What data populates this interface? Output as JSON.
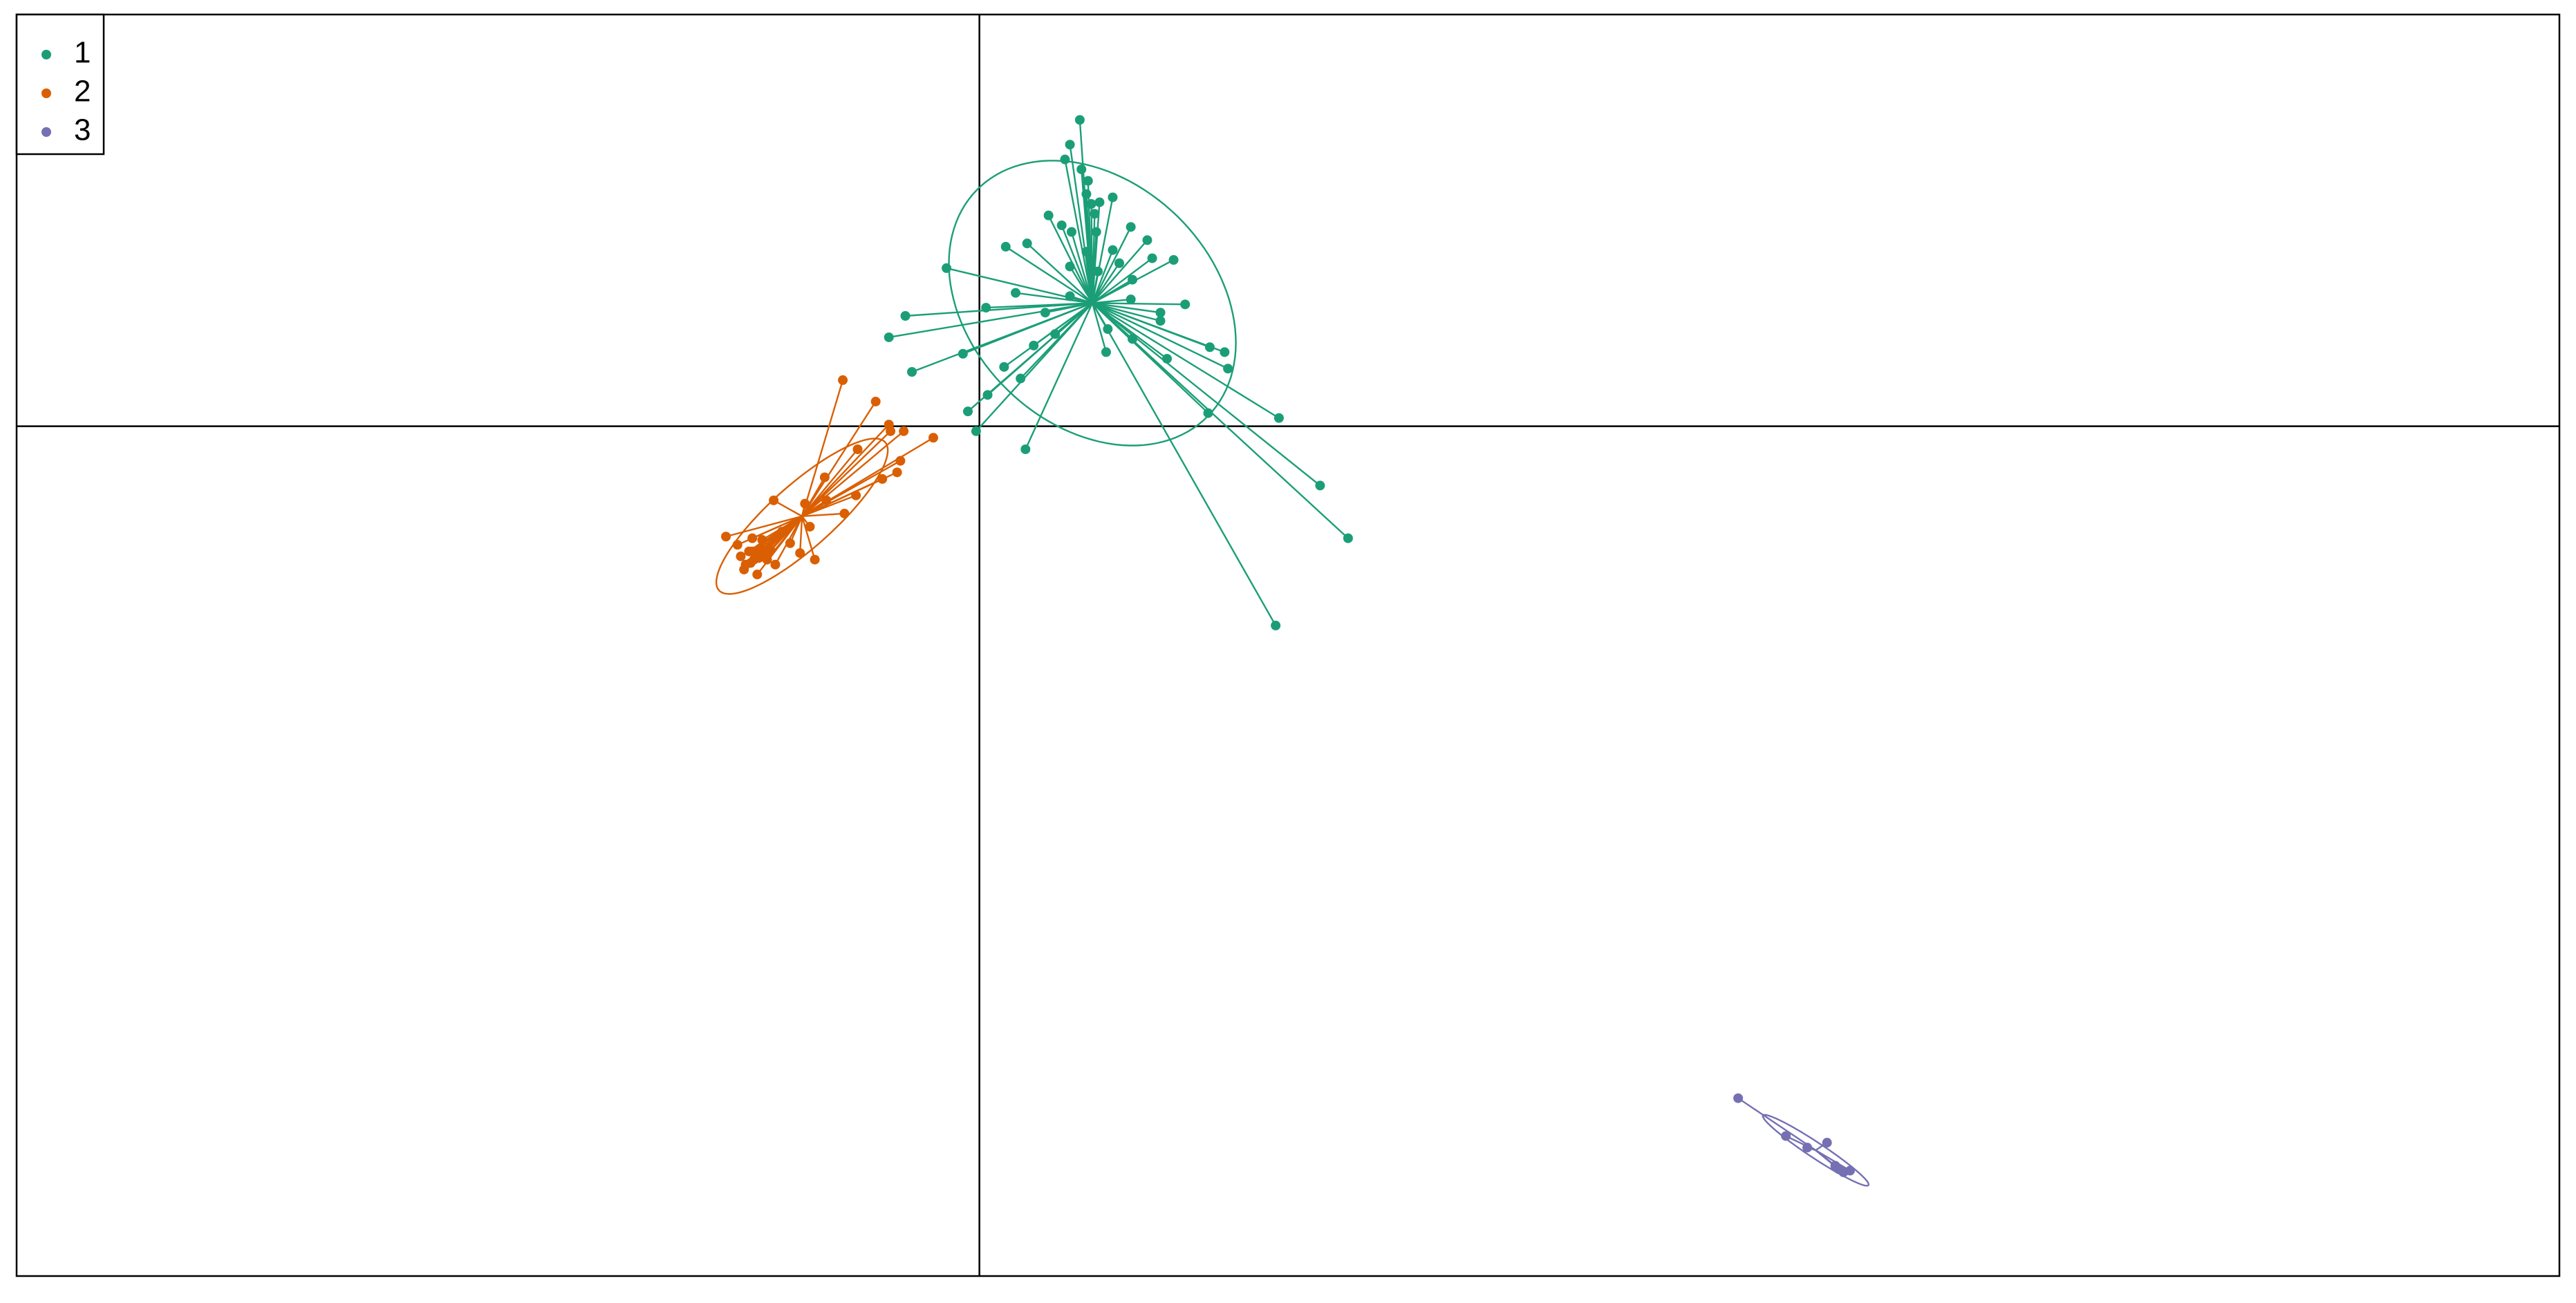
{
  "chart_data": {
    "type": "scatter",
    "xlim": [
      -5.85,
      9.6
    ],
    "ylim": [
      -5.16,
      2.5
    ],
    "legend": "top-left",
    "series": [
      {
        "name": "1",
        "color": "#1b9e77",
        "x": [
          0.61,
          0.55,
          0.52,
          0.62,
          0.66,
          0.65,
          0.68,
          0.73,
          0.42,
          0.81,
          0.5,
          0.56,
          0.71,
          0.92,
          1.02,
          0.29,
          0.16,
          0.65,
          0.81,
          1.05,
          1.18,
          -0.2,
          0.55,
          0.72,
          0.93,
          0.22,
          1.25,
          -0.45,
          0.04,
          1.1,
          -0.55,
          -0.1,
          0.15,
          0.46,
          0.77,
          0.93,
          1.4,
          1.49,
          1.51,
          -0.41,
          0.25,
          0.05,
          -0.07,
          -0.02,
          0.28,
          1.39,
          1.82,
          2.07,
          2.24,
          1.8,
          1.14,
          0.78,
          0.92,
          0.4,
          1.1,
          0.55,
          0.85,
          0.33,
          0.7
        ],
        "y": [
          1.86,
          1.71,
          1.62,
          1.56,
          1.49,
          1.41,
          1.35,
          1.36,
          1.28,
          1.39,
          1.22,
          1.18,
          1.18,
          1.21,
          1.13,
          1.11,
          1.09,
          1.06,
          1.07,
          1.02,
          1.01,
          0.96,
          0.97,
          0.94,
          0.89,
          0.81,
          0.74,
          0.67,
          0.72,
          0.64,
          0.54,
          0.44,
          0.36,
          0.56,
          0.45,
          0.53,
          0.48,
          0.45,
          0.35,
          0.33,
          0.29,
          0.19,
          0.09,
          -0.03,
          -0.14,
          0.08,
          0.05,
          -0.36,
          -0.68,
          -1.21,
          0.41,
          0.59,
          0.77,
          0.69,
          0.69,
          0.79,
          0.99,
          0.49,
          1.29
        ]
      },
      {
        "name": "2",
        "color": "#d95f02",
        "x": [
          -0.83,
          -0.63,
          -0.55,
          -0.46,
          -0.54,
          -0.28,
          -0.74,
          -0.48,
          -0.5,
          -0.59,
          -0.94,
          -0.75,
          -0.93,
          -1.06,
          -1.25,
          -0.82,
          -1.03,
          -1.54,
          -1.2,
          -1.38,
          -1.47,
          -1.33,
          -1.29,
          -1.42,
          -1.09,
          -1.35,
          -1.43,
          -1.24,
          -1.4,
          -1.32,
          -1.15,
          -1.37,
          -1.27,
          -1.45,
          -1.0,
          -1.36,
          -1.34,
          -1.38,
          -1.33,
          -1.39,
          -1.3
        ],
        "y": [
          0.28,
          0.15,
          0.01,
          -0.03,
          -0.03,
          -0.07,
          -0.14,
          -0.21,
          -0.28,
          -0.32,
          -0.31,
          -0.42,
          -0.45,
          -0.47,
          -0.45,
          -0.53,
          -0.61,
          -0.67,
          -0.64,
          -0.68,
          -0.72,
          -0.74,
          -0.81,
          -0.84,
          -0.77,
          -0.9,
          -0.87,
          -0.84,
          -0.76,
          -0.69,
          -0.71,
          -0.81,
          -0.75,
          -0.79,
          -0.81,
          -0.78,
          -0.8,
          -0.76,
          -0.77,
          -0.83,
          -0.79
        ]
      },
      {
        "name": "3",
        "color": "#7570b3",
        "x": [
          4.61,
          4.9,
          5.15,
          5.03,
          5.2,
          5.25,
          5.22,
          5.29
        ],
        "y": [
          -4.08,
          -4.31,
          -4.35,
          -4.38,
          -4.49,
          -4.53,
          -4.51,
          -4.52
        ]
      }
    ]
  }
}
